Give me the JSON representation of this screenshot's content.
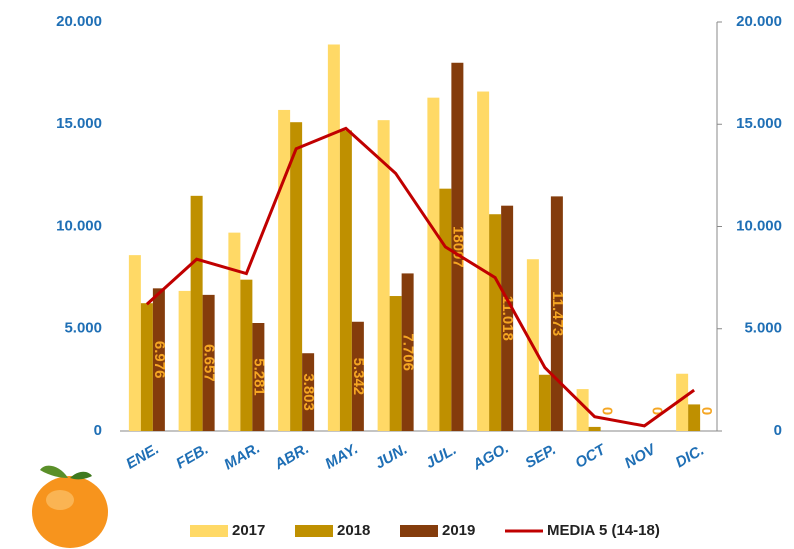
{
  "chart_data": {
    "type": "bar",
    "categories": [
      "ENE.",
      "FEB.",
      "MAR.",
      "ABR.",
      "MAY.",
      "JUN.",
      "JUL.",
      "AGO.",
      "SEP.",
      "OCT",
      "NOV",
      "DIC."
    ],
    "series": [
      {
        "name": "2017",
        "color": "#ffd966",
        "values": [
          8600,
          6850,
          9700,
          15700,
          18900,
          15200,
          16300,
          16600,
          8400,
          2050,
          0,
          2800
        ]
      },
      {
        "name": "2018",
        "color": "#bf9000",
        "values": [
          6250,
          11500,
          7400,
          15100,
          14700,
          6600,
          11850,
          10600,
          2750,
          200,
          0,
          1300
        ]
      },
      {
        "name": "2019",
        "color": "#843c0c",
        "values": [
          6976,
          6657,
          5281,
          3803,
          5342,
          7706,
          18007,
          11018,
          11473,
          0,
          0,
          0
        ],
        "value_labels": [
          "6.976",
          "6.657",
          "5.281",
          "3.803",
          "5.342",
          "7.706",
          "18007",
          "11.018",
          "11.473",
          "0",
          "0",
          "0"
        ]
      },
      {
        "name": "MEDIA 5 (14-18)",
        "type": "line",
        "color": "#c00000",
        "values": [
          6200,
          8400,
          7700,
          13800,
          14800,
          12600,
          9000,
          7500,
          3100,
          700,
          250,
          2000
        ]
      }
    ],
    "ylim": [
      0,
      20000
    ],
    "yticks": [
      0,
      {
        "value": 5000,
        "label": "5.000"
      },
      {
        "value": 10000,
        "label": "10.000"
      },
      {
        "value": 15000,
        "label": "15.000"
      },
      {
        "value": 20000,
        "label": "20.000"
      }
    ],
    "y2lim": [
      0,
      20000
    ],
    "y2ticks": [
      0,
      {
        "value": 5000,
        "label": "5.000"
      },
      {
        "value": 10000,
        "label": "10.000"
      },
      {
        "value": 15000,
        "label": "15.000"
      },
      {
        "value": 20000,
        "label": "20.000"
      }
    ],
    "legend": "bottom"
  }
}
